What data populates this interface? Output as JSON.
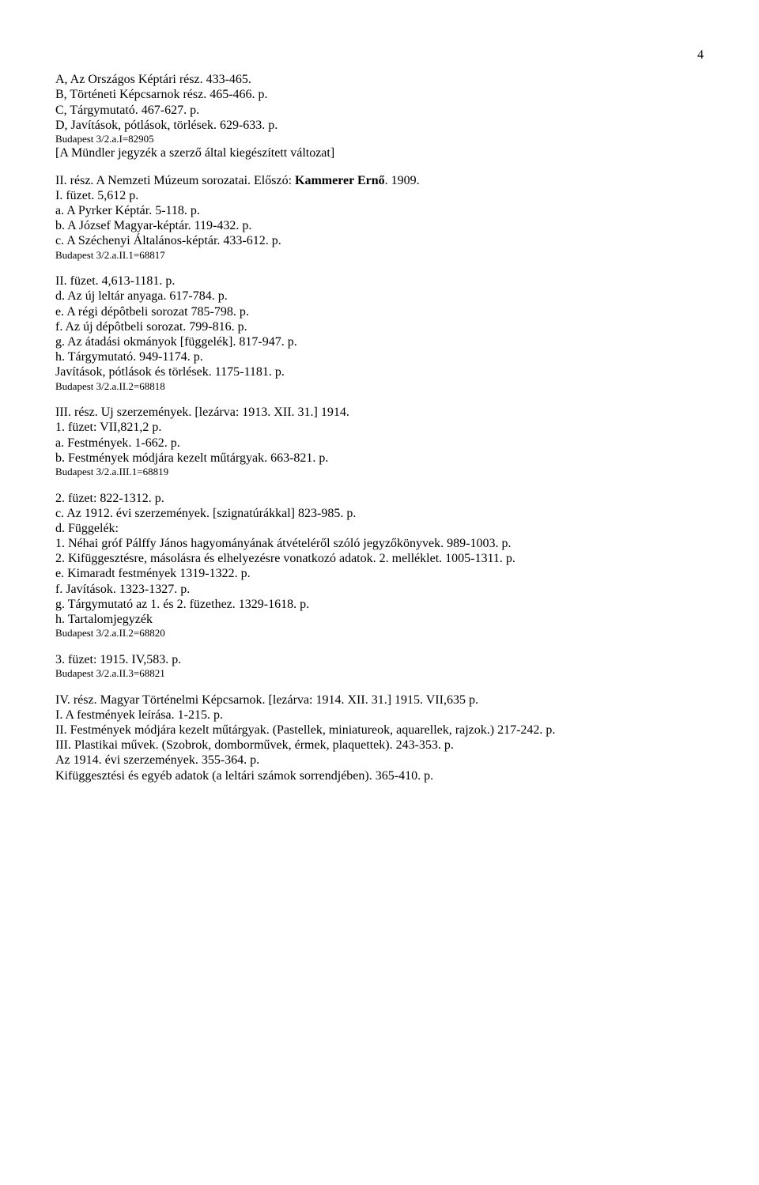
{
  "page_number": "4",
  "blocks": [
    {
      "lines": [
        {
          "text": "A, Az Országos Képtári rész. 433-465."
        },
        {
          "text": "B, Történeti Képcsarnok rész. 465-466. p."
        },
        {
          "text": "C, Tárgymutató. 467-627. p."
        },
        {
          "text": "D, Javítások, pótlások, törlések. 629-633. p."
        },
        {
          "text": "Budapest 3/2.a.I=82905",
          "small": true
        },
        {
          "text": "[A Mündler jegyzék a szerző által kiegészített változat]"
        }
      ]
    },
    {
      "lines": [
        {
          "segments": [
            {
              "text": "II. rész. A Nemzeti Múzeum sorozatai. Előszó: "
            },
            {
              "text": "Kammerer Ernő",
              "bold": true
            },
            {
              "text": ". 1909."
            }
          ]
        },
        {
          "text": "I. füzet. 5,612 p."
        },
        {
          "text": "a. A Pyrker Képtár. 5-118. p."
        },
        {
          "text": "b. A József Magyar-képtár. 119-432. p."
        },
        {
          "text": "c. A Széchenyi Általános-képtár. 433-612. p."
        },
        {
          "text": "Budapest 3/2.a.II.1=68817",
          "small": true
        }
      ]
    },
    {
      "lines": [
        {
          "text": "II. füzet. 4,613-1181. p."
        },
        {
          "text": "d. Az új leltár anyaga. 617-784. p."
        },
        {
          "text": "e. A régi dépôtbeli sorozat 785-798. p."
        },
        {
          "text": "f. Az új dépôtbeli sorozat. 799-816. p."
        },
        {
          "text": "g. Az átadási okmányok [függelék]. 817-947. p."
        },
        {
          "text": "h. Tárgymutató. 949-1174. p."
        },
        {
          "text": "Javítások, pótlások és törlések. 1175-1181. p."
        },
        {
          "text": "Budapest 3/2.a.II.2=68818",
          "small": true
        }
      ]
    },
    {
      "lines": [
        {
          "text": "III. rész. Uj szerzemények. [lezárva: 1913. XII. 31.] 1914."
        },
        {
          "text": "1. füzet: VII,821,2 p."
        },
        {
          "text": "a. Festmények. 1-662. p."
        },
        {
          "text": "b. Festmények módjára kezelt műtárgyak. 663-821. p."
        },
        {
          "text": "Budapest 3/2.a.III.1=68819",
          "small": true
        }
      ]
    },
    {
      "lines": [
        {
          "text": "2. füzet: 822-1312. p."
        },
        {
          "text": "c. Az 1912. évi szerzemények. [szignatúrákkal] 823-985. p."
        },
        {
          "text": "d. Függelék:"
        },
        {
          "text": "1. Néhai gróf Pálffy János hagyományának átvételéről szóló jegyzőkönyvek. 989-1003. p."
        },
        {
          "text": "2. Kifüggesztésre, másolásra és elhelyezésre vonatkozó adatok. 2. melléklet. 1005-1311. p."
        },
        {
          "text": "e. Kimaradt festmények 1319-1322. p."
        },
        {
          "text": "f. Javítások. 1323-1327. p."
        },
        {
          "text": "g. Tárgymutató az 1. és 2. füzethez. 1329-1618. p."
        },
        {
          "text": "h. Tartalomjegyzék"
        },
        {
          "text": "Budapest 3/2.a.II.2=68820",
          "small": true
        }
      ]
    },
    {
      "lines": [
        {
          "text": "3. füzet: 1915. IV,583. p."
        },
        {
          "text": "Budapest 3/2.a.II.3=68821",
          "small": true
        }
      ]
    },
    {
      "lines": [
        {
          "text": "IV. rész. Magyar Történelmi Képcsarnok. [lezárva: 1914. XII. 31.] 1915. VII,635 p."
        },
        {
          "text": "I. A festmények leírása. 1-215. p."
        },
        {
          "text": "II. Festmények módjára kezelt műtárgyak. (Pastellek, miniatureok, aquarellek, rajzok.) 217-242. p."
        },
        {
          "text": "III. Plastikai művek. (Szobrok, domborművek, érmek, plaquettek). 243-353. p."
        },
        {
          "text": "Az 1914. évi szerzemények. 355-364. p."
        },
        {
          "text": "Kifüggesztési és egyéb adatok (a leltári számok sorrendjében). 365-410. p."
        }
      ]
    }
  ]
}
